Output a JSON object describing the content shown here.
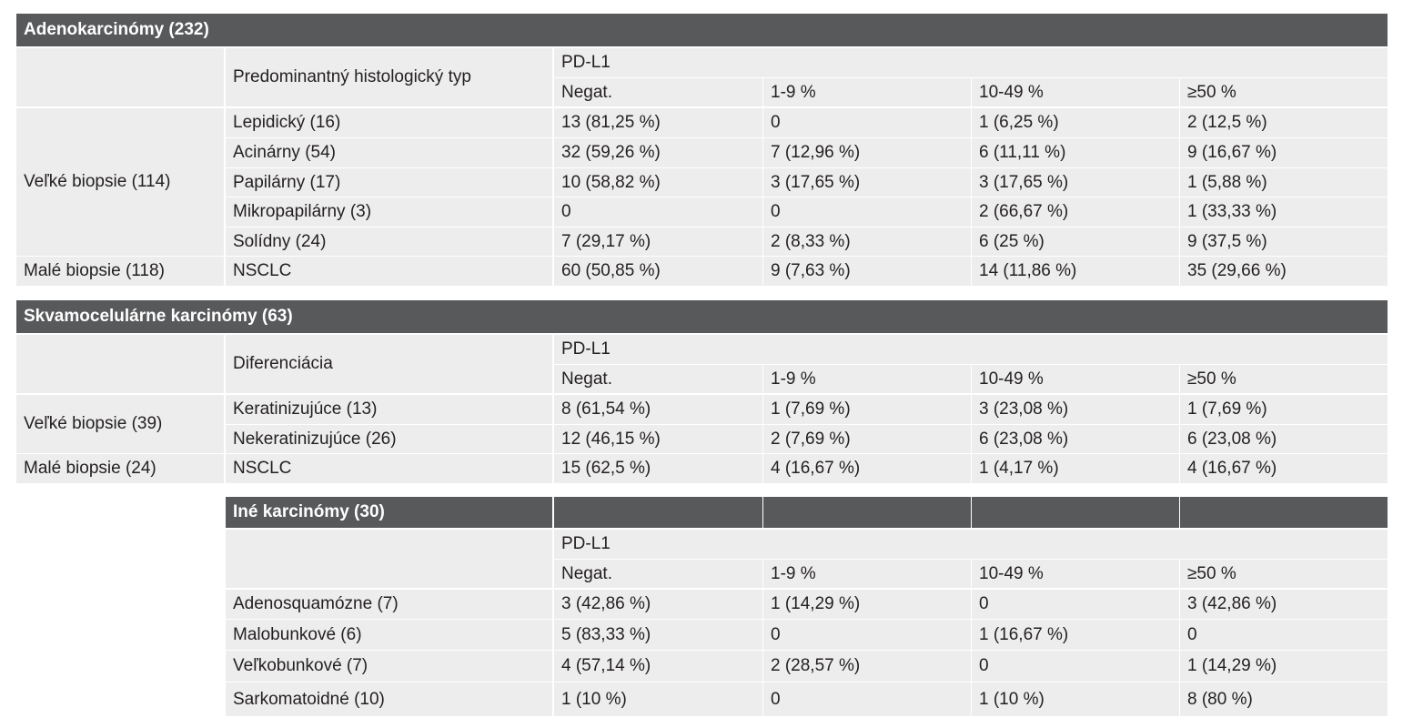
{
  "adeno": {
    "title": "Adenokarcinómy (232)",
    "col_header": "Predominantný histologický typ",
    "pdl1": "PD-L1",
    "columns": [
      "Negat.",
      "1-9 %",
      "10-49 %",
      "≥50 %"
    ],
    "group_large": "Veľké biopsie (114)",
    "group_small": "Malé biopsie (118)",
    "rows": [
      {
        "label": "Lepidický (16)",
        "values": [
          "13 (81,25 %)",
          "0",
          "1 (6,25 %)",
          "2 (12,5 %)"
        ]
      },
      {
        "label": "Acinárny (54)",
        "values": [
          "32 (59,26 %)",
          "7 (12,96 %)",
          "6 (11,11 %)",
          "9 (16,67 %)"
        ]
      },
      {
        "label": "Papilárny (17)",
        "values": [
          "10 (58,82 %)",
          "3 (17,65 %)",
          "3 (17,65 %)",
          "1 (5,88 %)"
        ]
      },
      {
        "label": "Mikropapilárny (3)",
        "values": [
          "0",
          "0",
          "2 (66,67 %)",
          "1 (33,33 %)"
        ]
      },
      {
        "label": "Solídny (24)",
        "values": [
          "7 (29,17 %)",
          "2 (8,33 %)",
          "6 (25 %)",
          "9 (37,5 %)"
        ]
      },
      {
        "label": "NSCLC",
        "values": [
          "60 (50,85 %)",
          "9 (7,63 %)",
          "14 (11,86 %)",
          "35 (29,66 %)"
        ]
      }
    ]
  },
  "squam": {
    "title": "Skvamocelulárne karcinómy (63)",
    "col_header": "Diferenciácia",
    "pdl1": "PD-L1",
    "columns": [
      "Negat.",
      "1-9 %",
      "10-49 %",
      "≥50 %"
    ],
    "group_large": "Veľké biopsie (39)",
    "group_small": "Malé biopsie (24)",
    "rows": [
      {
        "label": "Keratinizujúce (13)",
        "values": [
          "8 (61,54 %)",
          "1 (7,69 %)",
          "3 (23,08 %)",
          "1 (7,69 %)"
        ]
      },
      {
        "label": "Nekeratinizujúce (26)",
        "values": [
          "12 (46,15 %)",
          "2 (7,69 %)",
          "6 (23,08 %)",
          "6 (23,08 %)"
        ]
      },
      {
        "label": "NSCLC",
        "values": [
          "15 (62,5 %)",
          "4 (16,67 %)",
          "1 (4,17 %)",
          "4 (16,67 %)"
        ]
      }
    ]
  },
  "other": {
    "title": "Iné karcinómy (30)",
    "pdl1": "PD-L1",
    "columns": [
      "Negat.",
      "1-9 %",
      "10-49 %",
      "≥50 %"
    ],
    "rows": [
      {
        "label": "Adenosquamózne (7)",
        "values": [
          "3 (42,86 %)",
          "1 (14,29 %)",
          "0",
          "3 (42,86 %)"
        ]
      },
      {
        "label": "Malobunkové (6)",
        "values": [
          "5 (83,33 %)",
          "0",
          "1 (16,67 %)",
          "0"
        ]
      },
      {
        "label": "Veľkobunkové (7)",
        "values": [
          "4 (57,14 %)",
          "2 (28,57 %)",
          "0",
          "1 (14,29 %)"
        ]
      },
      {
        "label": "Sarkomatoidné (10)",
        "values": [
          "1 (10 %)",
          "0",
          "1 (10 %)",
          "8 (80 %)"
        ]
      }
    ]
  },
  "colors": {
    "header_bg": "#58595b",
    "cell_bg": "#ededed"
  }
}
